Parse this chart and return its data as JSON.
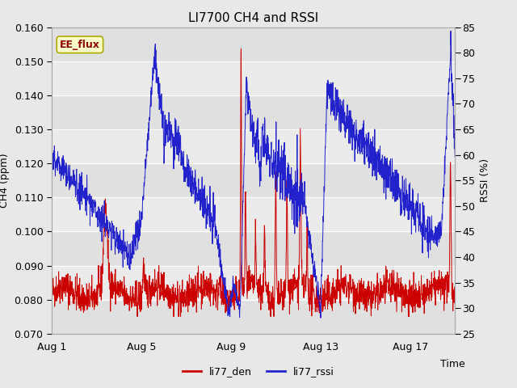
{
  "title": "LI7700 CH4 and RSSI",
  "xlabel": "Time",
  "ylabel_left": "CH4 (ppm)",
  "ylabel_right": "RSSI (%)",
  "ylim_left": [
    0.07,
    0.16
  ],
  "ylim_right": [
    25,
    85
  ],
  "yticks_left": [
    0.07,
    0.08,
    0.09,
    0.1,
    0.11,
    0.12,
    0.13,
    0.14,
    0.15,
    0.16
  ],
  "yticks_right": [
    25,
    30,
    35,
    40,
    45,
    50,
    55,
    60,
    65,
    70,
    75,
    80,
    85
  ],
  "xtick_labels": [
    "Aug 1",
    "Aug 5",
    "Aug 9",
    "Aug 13",
    "Aug 17"
  ],
  "xtick_positions": [
    0,
    4,
    8,
    12,
    16
  ],
  "xlim": [
    0,
    18
  ],
  "legend_labels": [
    "li77_den",
    "li77_rssi"
  ],
  "line_color_red": "#cc0000",
  "line_color_blue": "#2222cc",
  "annotation_text": "EE_flux",
  "annotation_color": "#8b0000",
  "annotation_bg": "#ffffcc",
  "annotation_edge": "#aaaa00",
  "band_colors": [
    "#e0e0e0",
    "#ebebeb"
  ],
  "bg_color": "#e8e8e8",
  "title_fontsize": 11,
  "axis_fontsize": 9,
  "tick_fontsize": 9
}
